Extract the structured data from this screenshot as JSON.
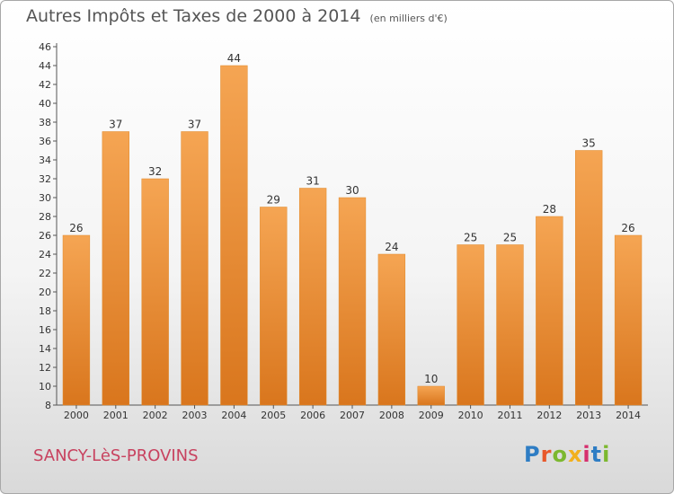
{
  "title": "Autres Impôts et Taxes de 2000 à 2014",
  "unit": "(en milliers d'€)",
  "commune": "SANCY-LèS-PROVINS",
  "logo_text": "Proxiti",
  "colors": {
    "bar_top": "#f5a553",
    "bar_bottom": "#d9761d",
    "title": "#555555",
    "commune": "#c8425f"
  },
  "chart_data": {
    "type": "bar",
    "categories": [
      "2000",
      "2001",
      "2002",
      "2003",
      "2004",
      "2005",
      "2006",
      "2007",
      "2008",
      "2009",
      "2010",
      "2011",
      "2012",
      "2013",
      "2014"
    ],
    "values": [
      26,
      37,
      32,
      37,
      44,
      29,
      31,
      30,
      24,
      10,
      25,
      25,
      28,
      35,
      26
    ],
    "title": "Autres Impôts et Taxes de 2000 à 2014",
    "subtitle": "(en milliers d'€)",
    "ylim": [
      8,
      46
    ],
    "yticks": [
      8,
      10,
      12,
      14,
      16,
      18,
      20,
      22,
      24,
      26,
      28,
      30,
      32,
      34,
      36,
      38,
      40,
      42,
      44,
      46
    ],
    "grid": false,
    "data_labels": true
  }
}
